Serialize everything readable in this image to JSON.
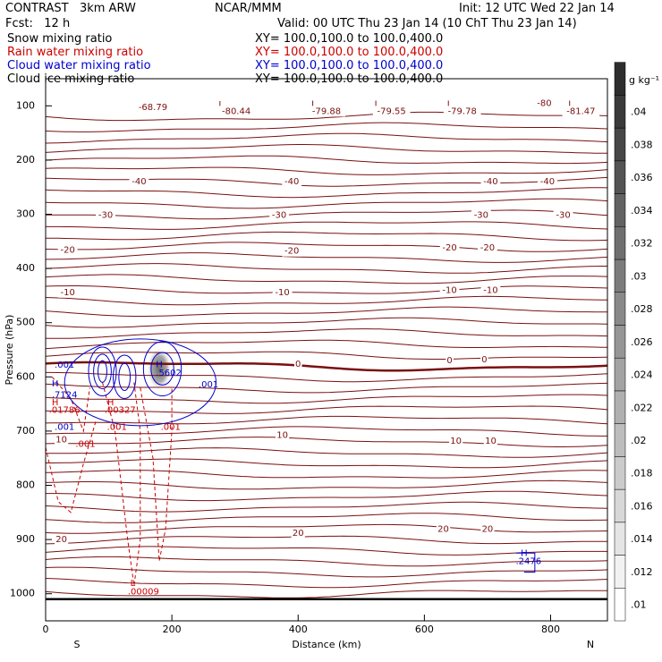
{
  "header": {
    "model": "CONTRAST   3km ARW",
    "center": "NCAR/MMM",
    "init": "Init: 12 UTC Wed 22 Jan 14",
    "fcst": "Fcst:   12 h",
    "valid": "Valid: 00 UTC Thu 23 Jan 14 (10 ChT Thu 23 Jan 14)",
    "fields": [
      {
        "name": "Snow mixing ratio",
        "xy": "XY= 100.0,100.0 to 100.0,400.0",
        "color": "#000000"
      },
      {
        "name": "Rain water mixing ratio",
        "xy": "XY= 100.0,100.0 to 100.0,400.0",
        "color": "#cc0000"
      },
      {
        "name": "Cloud water mixing ratio",
        "xy": "XY= 100.0,100.0 to 100.0,400.0",
        "color": "#0000cc"
      },
      {
        "name": "Cloud ice mixing ratio",
        "xy": "XY= 100.0,100.0 to 100.0,400.0",
        "color": "#000000"
      }
    ]
  },
  "chart_data": {
    "type": "contour",
    "xlabel": "Distance (km)",
    "ylabel": "Pressure (hPa)",
    "xlim": [
      0,
      890
    ],
    "ylim": [
      1050,
      50
    ],
    "x_ticks": [
      0,
      200,
      400,
      600,
      800
    ],
    "y_ticks": [
      100,
      200,
      300,
      400,
      500,
      600,
      700,
      800,
      900,
      1000
    ],
    "x_end_labels": {
      "left": "S",
      "right": "N"
    },
    "colorbar": {
      "unit": "g kg⁻¹",
      "ticks": [
        ".01",
        ".012",
        ".014",
        ".016",
        ".018",
        ".02",
        ".022",
        ".024",
        ".026",
        ".028",
        ".03",
        ".032",
        ".034",
        ".036",
        ".038",
        ".04"
      ]
    },
    "temperature_contours": {
      "color": "#7a1010",
      "labels": [
        {
          "text": "-68.79",
          "x": 170,
          "p": 103
        },
        {
          "text": "L",
          "x": 278,
          "p": 98
        },
        {
          "text": "-80.44",
          "x": 302,
          "p": 110
        },
        {
          "text": "L",
          "x": 425,
          "p": 97
        },
        {
          "text": "-79.88",
          "x": 445,
          "p": 110
        },
        {
          "text": "L",
          "x": 525,
          "p": 97
        },
        {
          "text": "-79.55",
          "x": 548,
          "p": 110
        },
        {
          "text": "L",
          "x": 640,
          "p": 97
        },
        {
          "text": "-79.78",
          "x": 660,
          "p": 110
        },
        {
          "text": "-80",
          "x": 790,
          "p": 95
        },
        {
          "text": "L",
          "x": 832,
          "p": 97
        },
        {
          "text": "-81.47",
          "x": 848,
          "p": 110
        },
        {
          "text": "-40",
          "x": 148,
          "p": 240
        },
        {
          "text": "-40",
          "x": 390,
          "p": 240
        },
        {
          "text": "-40",
          "x": 705,
          "p": 240
        },
        {
          "text": "-40",
          "x": 795,
          "p": 240
        },
        {
          "text": "-30",
          "x": 95,
          "p": 302
        },
        {
          "text": "-30",
          "x": 370,
          "p": 302
        },
        {
          "text": "-30",
          "x": 690,
          "p": 302
        },
        {
          "text": "-30",
          "x": 820,
          "p": 302
        },
        {
          "text": "-20",
          "x": 35,
          "p": 366
        },
        {
          "text": "-20",
          "x": 390,
          "p": 368
        },
        {
          "text": "-20",
          "x": 640,
          "p": 362
        },
        {
          "text": "-20",
          "x": 700,
          "p": 362
        },
        {
          "text": "-10",
          "x": 35,
          "p": 444
        },
        {
          "text": "-10",
          "x": 375,
          "p": 444
        },
        {
          "text": "-10",
          "x": 640,
          "p": 440
        },
        {
          "text": "-10",
          "x": 705,
          "p": 440
        },
        {
          "text": "0",
          "x": 400,
          "p": 576
        },
        {
          "text": "0",
          "x": 640,
          "p": 570
        },
        {
          "text": "0",
          "x": 695,
          "p": 568
        },
        {
          "text": "10",
          "x": 25,
          "p": 716
        },
        {
          "text": "10",
          "x": 375,
          "p": 708
        },
        {
          "text": "10",
          "x": 650,
          "p": 718
        },
        {
          "text": "10",
          "x": 705,
          "p": 718
        },
        {
          "text": "20",
          "x": 25,
          "p": 900
        },
        {
          "text": "20",
          "x": 400,
          "p": 888
        },
        {
          "text": "20",
          "x": 630,
          "p": 881
        },
        {
          "text": "20",
          "x": 700,
          "p": 881
        }
      ]
    },
    "cloud_water_labels": [
      {
        "text": ".001",
        "x": 30,
        "p": 578
      },
      {
        "text": "H",
        "x": 15,
        "p": 613
      },
      {
        "text": ".7124",
        "x": 30,
        "p": 633
      },
      {
        "text": "H",
        "x": 180,
        "p": 577
      },
      {
        "text": ".5602",
        "x": 195,
        "p": 593
      },
      {
        "text": ".001",
        "x": 258,
        "p": 614
      },
      {
        "text": ".001",
        "x": 30,
        "p": 693
      },
      {
        "text": "H",
        "x": 758,
        "p": 925
      },
      {
        "text": ".2476",
        "x": 765,
        "p": 940
      }
    ],
    "rain_labels": [
      {
        "text": "H",
        "x": 15,
        "p": 647
      },
      {
        "text": ".01786",
        "x": 30,
        "p": 661
      },
      {
        "text": "H",
        "x": 103,
        "p": 647
      },
      {
        "text": ".00327",
        "x": 118,
        "p": 661
      },
      {
        "text": ".001",
        "x": 63,
        "p": 724
      },
      {
        "text": ".001",
        "x": 113,
        "p": 693
      },
      {
        "text": ".001",
        "x": 198,
        "p": 693
      },
      {
        "text": "L",
        "x": 138,
        "p": 981
      },
      {
        "text": ".00009",
        "x": 155,
        "p": 996
      }
    ],
    "shaded_max": {
      "x": 180,
      "p": 585,
      "value": 0.03
    }
  }
}
